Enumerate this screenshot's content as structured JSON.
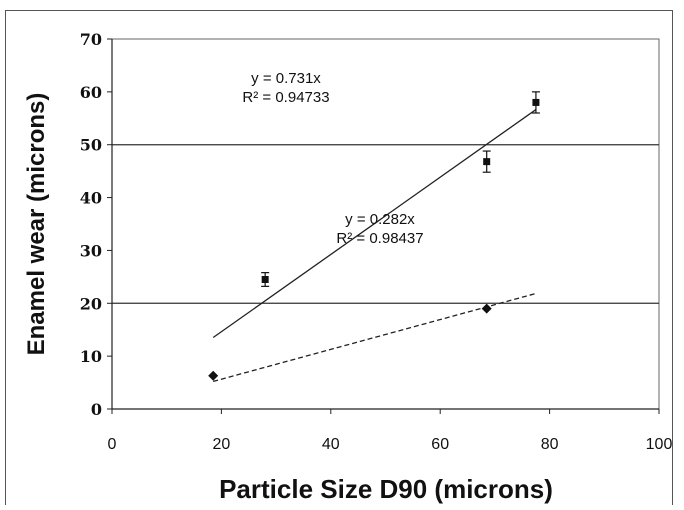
{
  "chart_data": {
    "type": "scatter",
    "title": "",
    "xlabel": "Particle Size D90 (microns)",
    "ylabel": "Enamel wear (microns)",
    "xlim": [
      0,
      100
    ],
    "ylim": [
      0,
      70
    ],
    "xticks": [
      "0",
      "20",
      "40",
      "60",
      "80",
      "100"
    ],
    "yticks": [
      "0",
      "10",
      "20",
      "30",
      "40",
      "50",
      "60",
      "70"
    ],
    "gridlines_y": [
      20,
      50
    ],
    "series": [
      {
        "marker": "square",
        "points": [
          {
            "x": 28,
            "y": 24.5,
            "err": 1.3
          },
          {
            "x": 68.5,
            "y": 46.8,
            "err": 2.0
          },
          {
            "x": 77.5,
            "y": 58.0,
            "err": 2.0
          }
        ],
        "trendline": {
          "slope": 0.731,
          "x_from": 18.5,
          "x_to": 77.5,
          "style": "solid"
        },
        "equation": "y = 0.731x",
        "r2": "R² = 0.94733"
      },
      {
        "marker": "diamond",
        "points": [
          {
            "x": 18.5,
            "y": 6.3
          },
          {
            "x": 68.5,
            "y": 19.0
          }
        ],
        "trendline": {
          "slope": 0.282,
          "x_from": 18.5,
          "x_to": 77.5,
          "style": "dashed"
        },
        "equation": "y = 0.282x",
        "r2": "R² = 0.98437"
      }
    ]
  }
}
